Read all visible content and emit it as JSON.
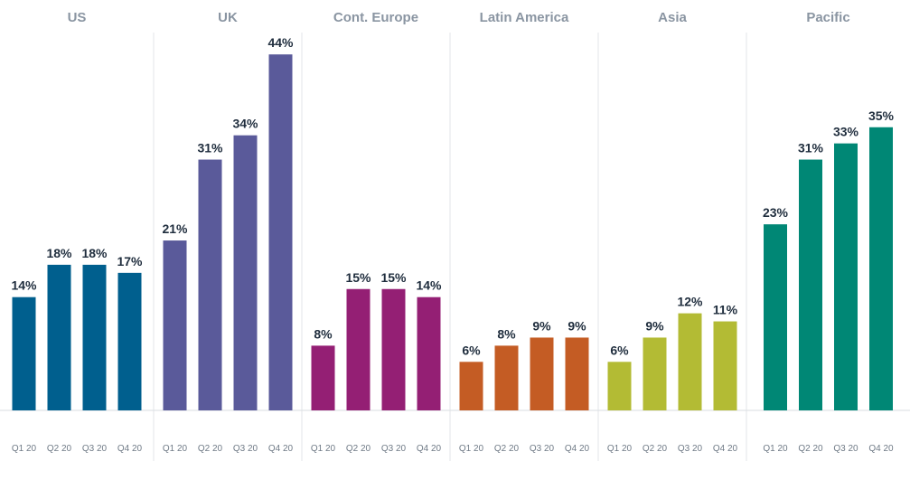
{
  "chart_data": {
    "type": "bar",
    "quarters": [
      "Q1 20",
      "Q2 20",
      "Q3 20",
      "Q4 20"
    ],
    "value_suffix": "%",
    "ylim": [
      0,
      48
    ],
    "grid": false,
    "legend": "none",
    "groups": [
      {
        "title": "US",
        "color": "#005f8e",
        "values": [
          14,
          18,
          18,
          17
        ]
      },
      {
        "title": "UK",
        "color": "#5a5a9a",
        "values": [
          21,
          31,
          34,
          44
        ]
      },
      {
        "title": "Cont. Europe",
        "color": "#941f74",
        "values": [
          8,
          15,
          15,
          14
        ]
      },
      {
        "title": "Latin America",
        "color": "#c45c24",
        "values": [
          6,
          8,
          9,
          9
        ]
      },
      {
        "title": "Asia",
        "color": "#b3bb34",
        "values": [
          6,
          9,
          12,
          11
        ]
      },
      {
        "title": "Pacific",
        "color": "#008775",
        "values": [
          23,
          31,
          33,
          35
        ]
      }
    ]
  }
}
